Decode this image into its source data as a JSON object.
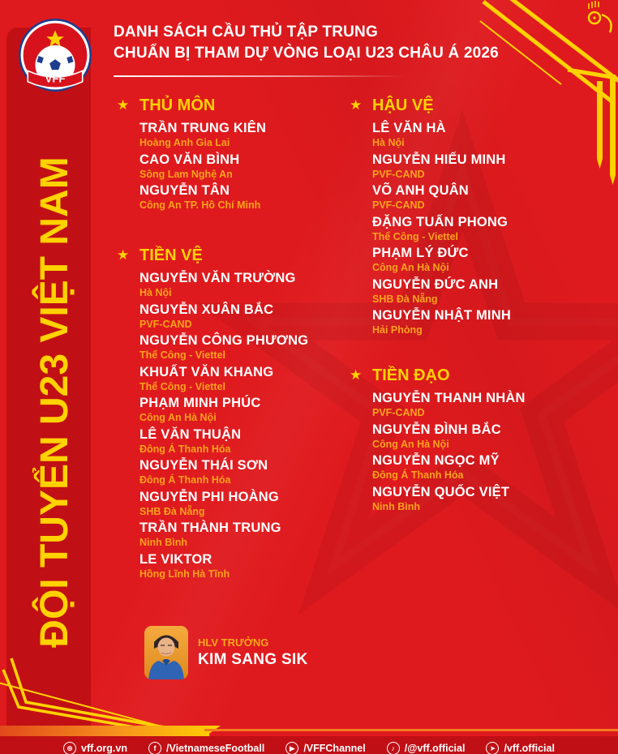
{
  "poster": {
    "logo_text": "VFF",
    "side_banner": "ĐỘI TUYỂN U23 VIỆT NAM",
    "header": {
      "line1": "DANH SÁCH CẦU THỦ TẬP TRUNG",
      "line2": "CHUẨN BỊ THAM DỰ VÒNG LOẠI U23 CHÂU Á 2026"
    },
    "sections": [
      {
        "id": "thu-mon",
        "title": "THỦ MÔN",
        "column": "left",
        "players": [
          {
            "name": "TRẦN TRUNG KIÊN",
            "club": "Hoàng Anh Gia Lai"
          },
          {
            "name": "CAO VĂN BÌNH",
            "club": "Sông Lam Nghệ An"
          },
          {
            "name": "NGUYỄN TÂN",
            "club": "Công An TP. Hồ Chí Minh"
          }
        ]
      },
      {
        "id": "tien-ve",
        "title": "TIỀN VỆ",
        "column": "left",
        "players": [
          {
            "name": "NGUYỄN VĂN TRƯỜNG",
            "club": "Hà Nội"
          },
          {
            "name": "NGUYỄN XUÂN BẮC",
            "club": "PVF-CAND"
          },
          {
            "name": "NGUYỄN CÔNG PHƯƠNG",
            "club": "Thể Công - Viettel"
          },
          {
            "name": "KHUẤT VĂN KHANG",
            "club": "Thể Công - Viettel"
          },
          {
            "name": "PHẠM MINH PHÚC",
            "club": "Công An Hà Nội"
          },
          {
            "name": "LÊ VĂN THUẬN",
            "club": "Đông Á Thanh Hóa"
          },
          {
            "name": "NGUYỄN THÁI SƠN",
            "club": "Đông Á Thanh Hóa"
          },
          {
            "name": "NGUYỄN PHI HOÀNG",
            "club": "SHB Đà Nẵng"
          },
          {
            "name": "TRẦN THÀNH TRUNG",
            "club": "Ninh Bình"
          },
          {
            "name": "LE VIKTOR",
            "club": "Hồng Lĩnh Hà Tĩnh"
          }
        ]
      },
      {
        "id": "hau-ve",
        "title": "HẬU VỆ",
        "column": "right",
        "players": [
          {
            "name": "LÊ VĂN HÀ",
            "club": "Hà Nội"
          },
          {
            "name": "NGUYỄN HIẾU MINH",
            "club": "PVF-CAND"
          },
          {
            "name": "VÕ ANH QUÂN",
            "club": "PVF-CAND"
          },
          {
            "name": "ĐẶNG TUẤN PHONG",
            "club": "Thể Công - Viettel"
          },
          {
            "name": "PHẠM LÝ ĐỨC",
            "club": "Công An Hà Nội"
          },
          {
            "name": "NGUYỄN ĐỨC ANH",
            "club": "SHB Đà Nẵng"
          },
          {
            "name": "NGUYỄN NHẬT MINH",
            "club": "Hải Phòng"
          }
        ]
      },
      {
        "id": "tien-dao",
        "title": "TIỀN ĐẠO",
        "column": "right",
        "players": [
          {
            "name": "NGUYỄN THANH NHÀN",
            "club": "PVF-CAND"
          },
          {
            "name": "NGUYỄN ĐÌNH BẮC",
            "club": "Công An Hà Nội"
          },
          {
            "name": "NGUYỄN NGỌC MỸ",
            "club": "Đông Á Thanh Hóa"
          },
          {
            "name": "NGUYỄN QUỐC VIỆT",
            "club": "Ninh Bình"
          }
        ]
      }
    ],
    "coach": {
      "role": "HLV TRƯỞNG",
      "name": "KIM SANG SIK"
    },
    "footer": {
      "items": [
        {
          "icon": "globe-icon",
          "glyph": "⊕",
          "label": "vff.org.vn"
        },
        {
          "icon": "facebook-icon",
          "glyph": "f",
          "label": "/VietnameseFootball"
        },
        {
          "icon": "youtube-icon",
          "glyph": "▶",
          "label": "/VFFChannel"
        },
        {
          "icon": "tiktok-icon",
          "glyph": "♪",
          "label": "/@vff.official"
        },
        {
          "icon": "send-icon",
          "glyph": "➤",
          "label": "/vff.official"
        }
      ]
    },
    "colors": {
      "main_red": "#DF1A1E",
      "band_red": "#C11015",
      "footer_red": "#C01015",
      "accent_yellow": "#FFD200",
      "club_orange": "#FAA21B",
      "stripe_orange": "#F05A22",
      "text_white": "#FFFFFF"
    }
  }
}
